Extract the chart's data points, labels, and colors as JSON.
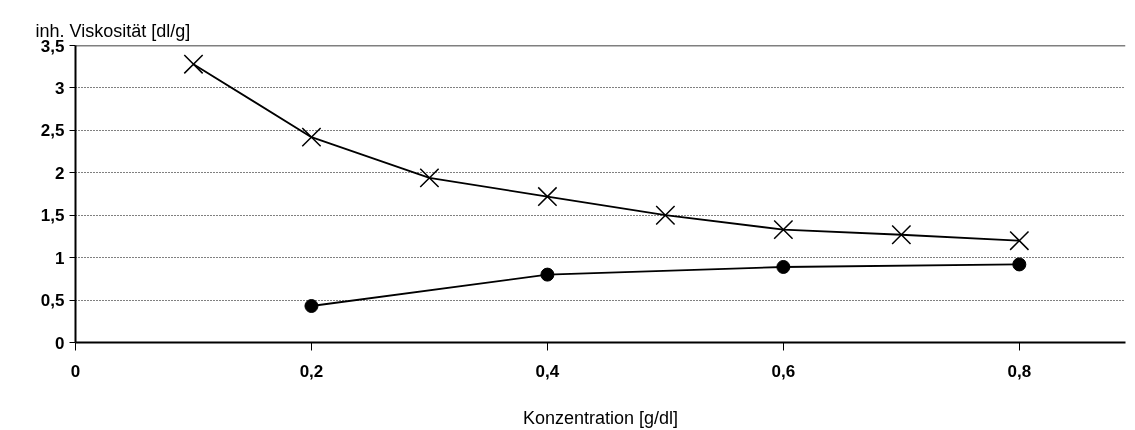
{
  "chart_data": {
    "type": "line",
    "ylabel": "inh. Viskosität [dl/g]",
    "xlabel": "Konzentration [g/dl]",
    "series": [
      {
        "color": "#000000",
        "marker": "cross",
        "x": [
          0.1,
          0.2,
          0.3,
          0.4,
          0.5,
          0.6,
          0.7,
          0.8
        ],
        "values": [
          3.28,
          2.42,
          1.94,
          1.72,
          1.5,
          1.33,
          1.27,
          1.2
        ]
      },
      {
        "color": "#000000",
        "marker": "circle",
        "x": [
          0.2,
          0.4,
          0.6,
          0.8
        ],
        "values": [
          0.43,
          0.8,
          0.89,
          0.92
        ]
      }
    ],
    "xlim": [
      0,
      0.89
    ],
    "ylim": [
      0,
      3.5
    ],
    "xticks": [
      {
        "value": 0,
        "label": "0"
      },
      {
        "value": 0.2,
        "label": "0,2"
      },
      {
        "value": 0.4,
        "label": "0,4"
      },
      {
        "value": 0.6,
        "label": "0,6"
      },
      {
        "value": 0.8,
        "label": "0,8"
      }
    ],
    "yticks": [
      {
        "value": 0,
        "label": "0"
      },
      {
        "value": 0.5,
        "label": "0,5"
      },
      {
        "value": 1,
        "label": "1"
      },
      {
        "value": 1.5,
        "label": "1,5"
      },
      {
        "value": 2,
        "label": "2"
      },
      {
        "value": 2.5,
        "label": "2,5"
      },
      {
        "value": 3,
        "label": "3"
      },
      {
        "value": 3.5,
        "label": "3,5"
      }
    ],
    "grid": "y",
    "line_style": "solid"
  }
}
